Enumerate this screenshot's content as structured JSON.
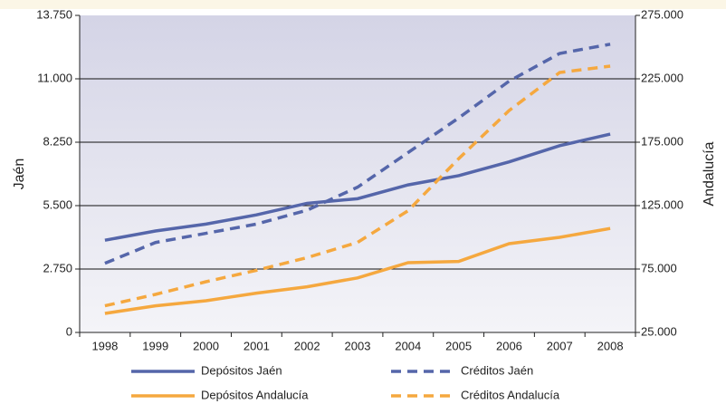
{
  "chart_data": {
    "type": "line",
    "categories": [
      "1998",
      "1999",
      "2000",
      "2001",
      "2002",
      "2003",
      "2004",
      "2005",
      "2006",
      "2007",
      "2008"
    ],
    "ylabel": "Jaén",
    "y2label": "Andalucía",
    "ylim": [
      0,
      13750
    ],
    "yticks": [
      0,
      {
        "value": 2750,
        "label": "2.750"
      },
      {
        "value": 5500,
        "label": "5.500"
      },
      {
        "value": 8250,
        "label": "8.250"
      },
      {
        "value": 11000,
        "label": "11.000"
      },
      {
        "value": 13750,
        "label": "13.750"
      }
    ],
    "y2lim": [
      25000,
      275000
    ],
    "y2ticks": [
      {
        "value": 25000,
        "label": "25.000"
      },
      {
        "value": 75000,
        "label": "75.000"
      },
      {
        "value": 125000,
        "label": "125.000"
      },
      {
        "value": 175000,
        "label": "175.000"
      },
      {
        "value": 225000,
        "label": "225.000"
      },
      {
        "value": 275000,
        "label": "275.000"
      }
    ],
    "grid": true,
    "series": [
      {
        "name": "Depósitos Jaén",
        "color": "#5566aa",
        "style": "solid",
        "values": [
          4000,
          4400,
          4700,
          5100,
          5600,
          5800,
          6400,
          6800,
          7400,
          8100,
          8600
        ]
      },
      {
        "name": "Créditos Jaén",
        "color": "#5566aa",
        "style": "dashed",
        "values": [
          3000,
          3900,
          4300,
          4700,
          5300,
          6300,
          7800,
          9300,
          10900,
          12100,
          12500
        ]
      },
      {
        "name": "Depósitos Andalucía",
        "color": "#f5a83f",
        "style": "solid",
        "axis": "y2",
        "values": [
          40000,
          46000,
          50000,
          56000,
          61000,
          68000,
          80000,
          81000,
          95000,
          100000,
          107000
        ]
      },
      {
        "name": "Créditos Andalucía",
        "color": "#f5a83f",
        "style": "dashed",
        "axis": "y2",
        "values": [
          46000,
          55000,
          65000,
          74000,
          84000,
          96000,
          121000,
          162000,
          200000,
          230000,
          235000
        ]
      }
    ]
  }
}
